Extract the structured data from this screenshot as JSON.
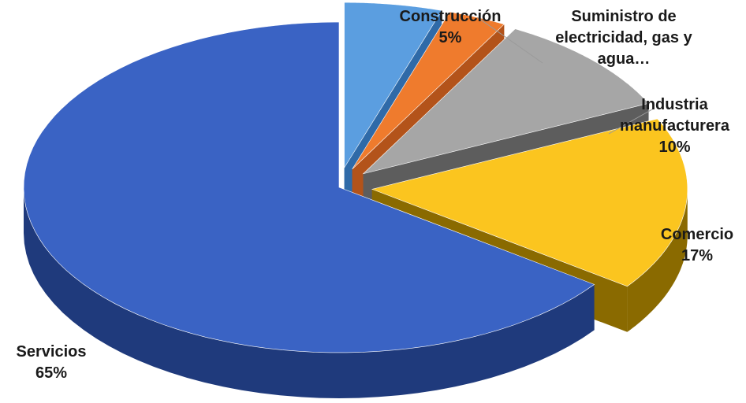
{
  "chart_data": {
    "type": "pie",
    "style": "3d-exploded",
    "slices": [
      {
        "name": "Servicios",
        "label": "Servicios",
        "value": 65,
        "value_label": "65%",
        "color": "#3a63c4",
        "dark": "#1f3a7c"
      },
      {
        "name": "Construcción",
        "label": "Construcción",
        "value": 5,
        "value_label": "5%",
        "color": "#5b9ee0",
        "dark": "#2f6aa8"
      },
      {
        "name": "Suministro de electricidad, gas y agua",
        "label": "Suministro de electricidad, gas y agua…",
        "label_lines": [
          "Suministro de",
          "electricidad, gas y",
          "agua…"
        ],
        "value": 3,
        "value_label": "",
        "color": "#ef7b2d",
        "dark": "#b3531a"
      },
      {
        "name": "Industria manufacturera",
        "label": "Industria manufacturera",
        "label_lines": [
          "Industria",
          "manufacturera"
        ],
        "value": 10,
        "value_label": "10%",
        "color": "#a6a6a6",
        "dark": "#5d5d5d"
      },
      {
        "name": "Comercio",
        "label": "Comercio",
        "value": 17,
        "value_label": "17%",
        "color": "#fbc51f",
        "dark": "#8a6a00"
      }
    ]
  }
}
